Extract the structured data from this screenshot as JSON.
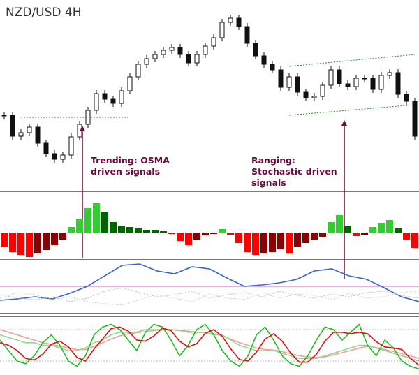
{
  "chart_data": [
    {
      "type": "candlestick",
      "title": "NZD/USD 4H",
      "ylim": [
        0,
        250
      ],
      "up_color": "#ffffff",
      "down_color": "#111111",
      "values": [
        85,
        55,
        60,
        68,
        45,
        30,
        22,
        28,
        54,
        72,
        92,
        116,
        108,
        102,
        120,
        140,
        158,
        166,
        172,
        178,
        182,
        172,
        160,
        172,
        184,
        196,
        218,
        224,
        212,
        188,
        170,
        158,
        150,
        125,
        140,
        118,
        110,
        112,
        128,
        150,
        130,
        126,
        138,
        138,
        122,
        142,
        146,
        115,
        105,
        55
      ],
      "trend_lines": [
        {
          "x": [
            2,
            15
          ],
          "y": [
            82,
            82
          ]
        },
        {
          "x": [
            34,
            49
          ],
          "y": [
            155,
            172
          ]
        },
        {
          "x": [
            34,
            49
          ],
          "y": [
            85,
            100
          ]
        }
      ],
      "trend_color": "#228b22",
      "annotations": [
        "Trending: OSMA driven signals",
        "Ranging: Stochastic driven signals"
      ],
      "annotation_color": "#6b0b3c"
    },
    {
      "type": "histogram",
      "ylim": [
        -40,
        45
      ],
      "colors": {
        "pos_up": "#33cc33",
        "pos_down": "#006400",
        "neg_down": "#ff0000",
        "neg_up": "#8b0000"
      },
      "values": [
        -20,
        -28,
        -32,
        -35,
        -30,
        -25,
        -18,
        -10,
        8,
        20,
        35,
        42,
        30,
        15,
        10,
        8,
        6,
        4,
        3,
        2,
        -2,
        -12,
        -18,
        -10,
        -4,
        -2,
        5,
        -3,
        -15,
        -28,
        -32,
        -30,
        -28,
        -24,
        -30,
        -20,
        -15,
        -10,
        -6,
        15,
        25,
        10,
        -5,
        -3,
        8,
        14,
        18,
        6,
        -10,
        -22
      ]
    },
    {
      "type": "line",
      "ylim": [
        0,
        72
      ],
      "levels": [
        37
      ],
      "level_color": "#cc66cc",
      "series": [
        {
          "color": "#3366cc",
          "dash": false,
          "values": [
            17,
            19,
            22,
            19,
            27,
            37,
            52,
            67,
            69,
            59,
            55,
            65,
            62,
            49,
            37,
            39,
            42,
            47,
            59,
            62,
            52,
            47,
            35,
            22,
            15
          ]
        },
        {
          "color": "#bbbbbb",
          "dash": true,
          "values": [
            25,
            20,
            18,
            22,
            15,
            20,
            30,
            35,
            28,
            22,
            25,
            30,
            20,
            25,
            28,
            22,
            30,
            24,
            20,
            26,
            22,
            28,
            30,
            24,
            20
          ]
        },
        {
          "color": "#cccccc",
          "dash": true,
          "values": [
            20,
            28,
            25,
            18,
            22,
            15,
            12,
            10,
            18,
            25,
            20,
            15,
            26,
            20,
            18,
            28,
            20,
            26,
            24,
            18,
            27,
            20,
            22,
            28,
            30
          ]
        }
      ]
    },
    {
      "type": "line",
      "ylim": [
        0,
        100
      ],
      "levels": [
        20,
        80
      ],
      "level_color": "#bbbbbb",
      "series": [
        {
          "color": "#f0a0a0",
          "dash": false,
          "values": [
            80,
            75,
            70,
            65,
            60,
            55,
            52,
            48,
            45,
            42,
            42,
            48,
            55,
            62,
            68,
            72,
            74,
            76,
            78,
            80,
            80,
            79,
            77,
            75,
            74,
            72,
            68,
            62,
            55,
            50,
            45,
            42,
            41,
            38,
            34,
            30,
            28,
            27,
            28,
            32,
            36,
            40,
            45,
            48,
            46,
            42,
            38,
            34,
            30,
            25
          ]
        },
        {
          "color": "#90d890",
          "dash": false,
          "values": [
            70,
            65,
            60,
            55,
            55,
            50,
            50,
            45,
            40,
            40,
            45,
            55,
            60,
            70,
            75,
            75,
            75,
            80,
            80,
            80,
            80,
            78,
            75,
            75,
            75,
            70,
            70,
            60,
            50,
            45,
            40,
            40,
            40,
            35,
            30,
            25,
            25,
            25,
            30,
            35,
            40,
            45,
            50,
            50,
            45,
            40,
            35,
            30,
            25,
            20
          ]
        },
        {
          "color": "#22bb22",
          "dash": false,
          "values": [
            60,
            40,
            20,
            15,
            30,
            55,
            70,
            50,
            20,
            10,
            30,
            70,
            85,
            90,
            80,
            60,
            40,
            75,
            90,
            85,
            60,
            30,
            50,
            80,
            90,
            70,
            40,
            20,
            10,
            30,
            70,
            85,
            60,
            30,
            15,
            10,
            30,
            60,
            85,
            80,
            60,
            75,
            90,
            50,
            30,
            60,
            45,
            20,
            10,
            5
          ]
        },
        {
          "color": "#dd1111",
          "dash": false,
          "values": [
            55,
            50,
            40,
            25,
            22,
            33,
            52,
            58,
            47,
            27,
            20,
            43,
            62,
            82,
            85,
            77,
            60,
            58,
            68,
            83,
            78,
            58,
            47,
            53,
            73,
            80,
            67,
            43,
            23,
            20,
            37,
            62,
            72,
            58,
            35,
            18,
            18,
            33,
            58,
            75,
            75,
            72,
            75,
            72,
            57,
            47,
            45,
            42,
            25,
            12
          ]
        }
      ]
    }
  ]
}
